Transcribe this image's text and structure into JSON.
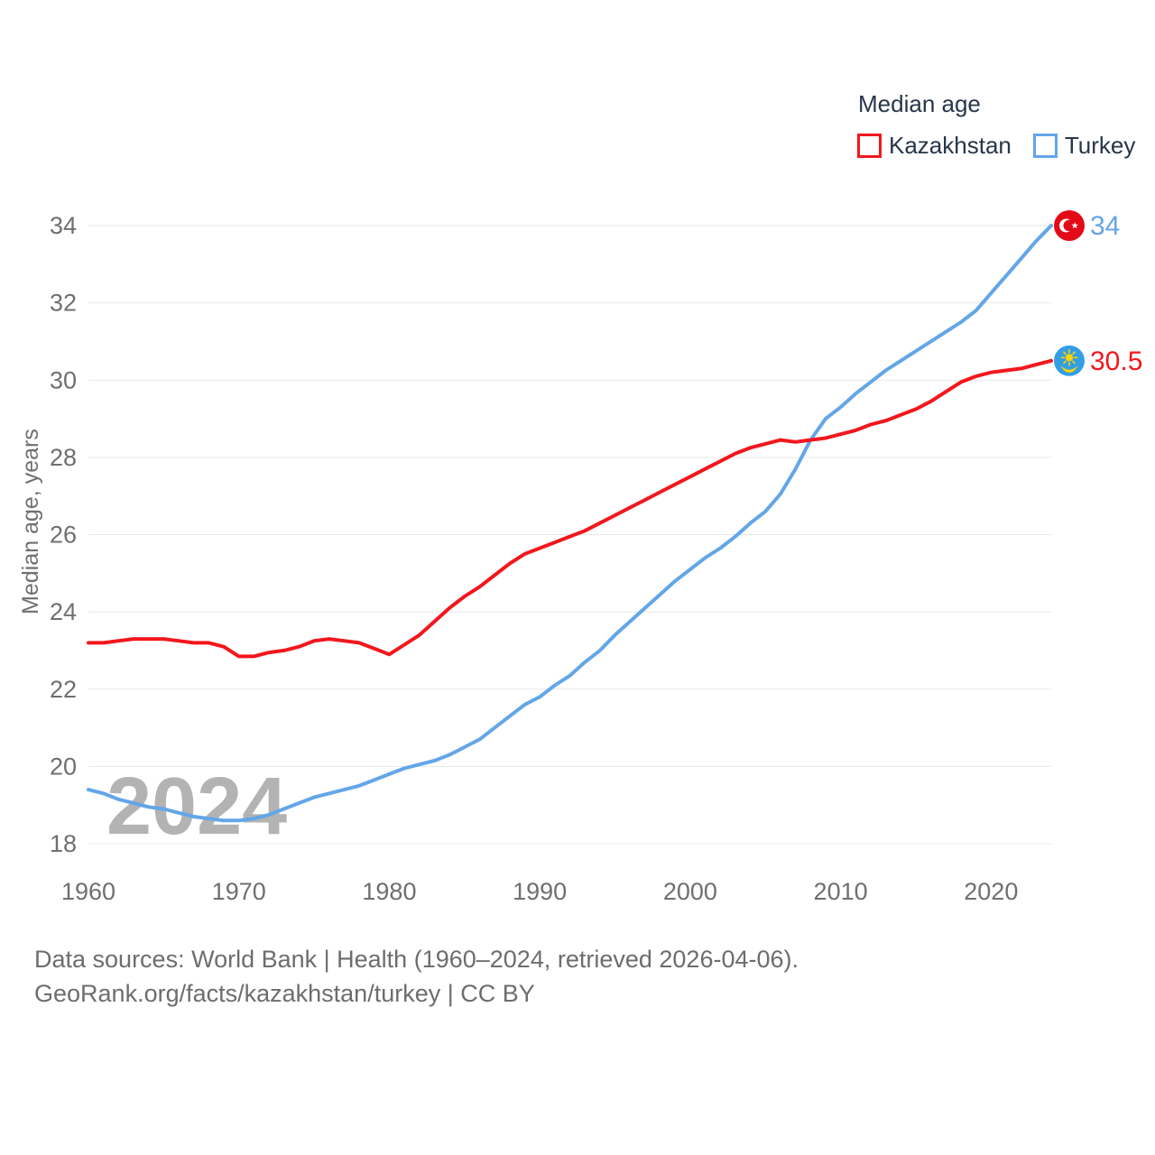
{
  "legend": {
    "title": "Median age",
    "items": [
      {
        "label": "Kazakhstan",
        "color": "#f2171d"
      },
      {
        "label": "Turkey",
        "color": "#63a6e8"
      }
    ]
  },
  "watermark": "2024",
  "footer": {
    "line1": "Data sources: World Bank | Health (1960–2024, retrieved 2026-04-06).",
    "line2": "GeoRank.org/facts/kazakhstan/turkey | CC BY"
  },
  "colors": {
    "grid": "#e7e7e7",
    "axis_text": "#6f6f6f",
    "legend_text": "#26364a",
    "watermark": "#b3b3b3",
    "turkey_flag_red": "#e30a17",
    "kazakhstan_flag_blue": "#339ee5",
    "flag_gold": "#ffd400"
  },
  "chart_data": {
    "type": "line",
    "title": "Median age",
    "xlabel": "",
    "ylabel": "Median age, years",
    "xlim": [
      1960,
      2024
    ],
    "ylim": [
      18,
      34
    ],
    "x_ticks": [
      1960,
      1970,
      1980,
      1990,
      2000,
      2010,
      2020
    ],
    "y_ticks": [
      18,
      20,
      22,
      24,
      26,
      28,
      30,
      32,
      34
    ],
    "grid": "horizontal",
    "legend_position": "top-right",
    "x": [
      1960,
      1961,
      1962,
      1963,
      1964,
      1965,
      1966,
      1967,
      1968,
      1969,
      1970,
      1971,
      1972,
      1973,
      1974,
      1975,
      1976,
      1977,
      1978,
      1979,
      1980,
      1981,
      1982,
      1983,
      1984,
      1985,
      1986,
      1987,
      1988,
      1989,
      1990,
      1991,
      1992,
      1993,
      1994,
      1995,
      1996,
      1997,
      1998,
      1999,
      2000,
      2001,
      2002,
      2003,
      2004,
      2005,
      2006,
      2007,
      2008,
      2009,
      2010,
      2011,
      2012,
      2013,
      2014,
      2015,
      2016,
      2017,
      2018,
      2019,
      2020,
      2021,
      2022,
      2023,
      2024
    ],
    "series": [
      {
        "name": "Turkey",
        "color": "#63a6e8",
        "flag": "turkey",
        "end_label": "34",
        "end_value": 34,
        "values": [
          19.4,
          19.3,
          19.15,
          19.05,
          18.95,
          18.9,
          18.8,
          18.7,
          18.65,
          18.6,
          18.6,
          18.65,
          18.75,
          18.9,
          19.05,
          19.2,
          19.3,
          19.4,
          19.5,
          19.65,
          19.8,
          19.95,
          20.05,
          20.15,
          20.3,
          20.5,
          20.7,
          21.0,
          21.3,
          21.6,
          21.8,
          22.1,
          22.35,
          22.7,
          23.0,
          23.4,
          23.75,
          24.1,
          24.45,
          24.8,
          25.1,
          25.4,
          25.65,
          25.95,
          26.3,
          26.6,
          27.05,
          27.7,
          28.45,
          29.0,
          29.3,
          29.65,
          29.95,
          30.25,
          30.5,
          30.75,
          31.0,
          31.25,
          31.5,
          31.8,
          32.25,
          32.7,
          33.15,
          33.6,
          34.0
        ]
      },
      {
        "name": "Kazakhstan",
        "color": "#f2171d",
        "flag": "kazakhstan",
        "end_label": "30.5",
        "end_value": 30.5,
        "values": [
          23.2,
          23.2,
          23.25,
          23.3,
          23.3,
          23.3,
          23.25,
          23.2,
          23.2,
          23.1,
          22.85,
          22.85,
          22.95,
          23.0,
          23.1,
          23.25,
          23.3,
          23.25,
          23.2,
          23.05,
          22.9,
          23.15,
          23.4,
          23.75,
          24.1,
          24.4,
          24.65,
          24.95,
          25.25,
          25.5,
          25.65,
          25.8,
          25.95,
          26.1,
          26.3,
          26.5,
          26.7,
          26.9,
          27.1,
          27.3,
          27.5,
          27.7,
          27.9,
          28.1,
          28.25,
          28.35,
          28.45,
          28.4,
          28.45,
          28.5,
          28.6,
          28.7,
          28.85,
          28.95,
          29.1,
          29.25,
          29.45,
          29.7,
          29.95,
          30.1,
          30.2,
          30.25,
          30.3,
          30.4,
          30.5
        ]
      }
    ]
  }
}
